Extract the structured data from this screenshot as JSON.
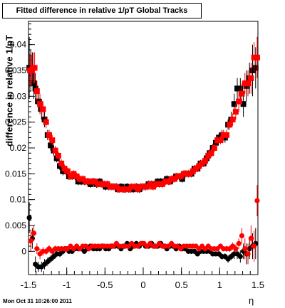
{
  "title": "Fitted difference in relative 1/pT  Global Tracks",
  "timestamp": "Mon Oct 31 10:26:00 2011",
  "chart_data": {
    "type": "scatter",
    "xlabel": "η",
    "ylabel": "difference in relative 1/pT",
    "xlim": [
      -1.5,
      1.5
    ],
    "ylim": [
      -0.0045,
      0.0445
    ],
    "x_ticks": [
      "-1.5",
      "-1",
      "-0.5",
      "0",
      "0.5",
      "1",
      "1.5"
    ],
    "y_ticks": [
      "0",
      "0.005",
      "0.01",
      "0.015",
      "0.02",
      "0.025",
      "0.03",
      "0.035",
      "0.04"
    ],
    "x_tick_values": [
      -1.5,
      -1,
      -0.5,
      0,
      0.5,
      1,
      1.5
    ],
    "y_tick_values": [
      0,
      0.005,
      0.01,
      0.015,
      0.02,
      0.025,
      0.03,
      0.035,
      0.04
    ],
    "grid": false,
    "series": [
      {
        "color": "#000000",
        "marker": "square",
        "x": [
          -1.49,
          -1.47,
          -1.45,
          -1.43,
          -1.41,
          -1.37,
          -1.33,
          -1.29,
          -1.25,
          -1.21,
          -1.17,
          -1.13,
          -1.09,
          -1.05,
          -1.01,
          -0.97,
          -0.93,
          -0.89,
          -0.85,
          -0.81,
          -0.77,
          -0.73,
          -0.69,
          -0.65,
          -0.61,
          -0.57,
          -0.53,
          -0.49,
          -0.45,
          -0.41,
          -0.37,
          -0.33,
          -0.29,
          -0.25,
          -0.21,
          -0.17,
          -0.13,
          -0.09,
          -0.05,
          -0.01,
          0.03,
          0.07,
          0.11,
          0.15,
          0.19,
          0.23,
          0.27,
          0.31,
          0.35,
          0.39,
          0.43,
          0.47,
          0.51,
          0.55,
          0.59,
          0.63,
          0.67,
          0.71,
          0.75,
          0.79,
          0.83,
          0.87,
          0.91,
          0.95,
          0.99,
          1.03,
          1.07,
          1.11,
          1.15,
          1.19,
          1.23,
          1.27,
          1.31,
          1.35,
          1.39,
          1.43,
          1.47
        ],
        "y": [
          0.0355,
          0.035,
          0.0355,
          0.0325,
          0.0315,
          0.029,
          0.0275,
          0.0255,
          0.0225,
          0.0205,
          0.0195,
          0.018,
          0.0165,
          0.0155,
          0.0155,
          0.0145,
          0.0145,
          0.0145,
          0.0135,
          0.0135,
          0.0135,
          0.0135,
          0.013,
          0.0135,
          0.013,
          0.0135,
          0.013,
          0.0125,
          0.0125,
          0.0125,
          0.0125,
          0.012,
          0.0125,
          0.012,
          0.0125,
          0.012,
          0.012,
          0.0125,
          0.012,
          0.0125,
          0.0125,
          0.013,
          0.013,
          0.013,
          0.0135,
          0.0135,
          0.0135,
          0.014,
          0.0135,
          0.014,
          0.0145,
          0.0145,
          0.014,
          0.015,
          0.015,
          0.015,
          0.016,
          0.016,
          0.017,
          0.017,
          0.018,
          0.019,
          0.02,
          0.021,
          0.022,
          0.0225,
          0.022,
          0.0245,
          0.0255,
          0.0285,
          0.0315,
          0.0315,
          0.0285,
          0.032,
          0.0335,
          0.035,
          0.0355
        ],
        "err": [
          0.006,
          0.004,
          0.003,
          0.003,
          0.003,
          0.002,
          0.002,
          0.0015,
          0.001,
          0.001,
          0.001,
          0.0008,
          0.0008,
          0.0008,
          0.0007,
          0.0007,
          0.0007,
          0.0007,
          0.0007,
          0.0007,
          0.0007,
          0.0007,
          0.0007,
          0.0007,
          0.0007,
          0.0007,
          0.0007,
          0.0007,
          0.0007,
          0.0007,
          0.0007,
          0.0007,
          0.0007,
          0.0007,
          0.0007,
          0.0007,
          0.0007,
          0.0007,
          0.0007,
          0.0007,
          0.0007,
          0.0007,
          0.0007,
          0.0007,
          0.0007,
          0.0007,
          0.0007,
          0.0007,
          0.0007,
          0.0007,
          0.0007,
          0.0007,
          0.0007,
          0.0007,
          0.0007,
          0.0007,
          0.0007,
          0.0007,
          0.0007,
          0.0007,
          0.0008,
          0.0008,
          0.0008,
          0.0008,
          0.0008,
          0.001,
          0.001,
          0.001,
          0.0015,
          0.002,
          0.002,
          0.002,
          0.0025,
          0.003,
          0.003,
          0.005,
          0.004
        ]
      },
      {
        "color": "#ff0000",
        "marker": "square",
        "x": [
          -1.48,
          -1.46,
          -1.44,
          -1.42,
          -1.39,
          -1.35,
          -1.31,
          -1.27,
          -1.23,
          -1.19,
          -1.15,
          -1.11,
          -1.07,
          -1.03,
          -0.99,
          -0.95,
          -0.91,
          -0.87,
          -0.83,
          -0.79,
          -0.75,
          -0.71,
          -0.67,
          -0.63,
          -0.59,
          -0.55,
          -0.51,
          -0.47,
          -0.43,
          -0.39,
          -0.35,
          -0.31,
          -0.27,
          -0.23,
          -0.19,
          -0.15,
          -0.11,
          -0.07,
          -0.03,
          0.01,
          0.05,
          0.09,
          0.13,
          0.17,
          0.21,
          0.25,
          0.29,
          0.33,
          0.37,
          0.41,
          0.45,
          0.49,
          0.53,
          0.57,
          0.61,
          0.65,
          0.69,
          0.73,
          0.77,
          0.81,
          0.85,
          0.89,
          0.93,
          0.97,
          1.01,
          1.05,
          1.09,
          1.13,
          1.17,
          1.21,
          1.25,
          1.29,
          1.33,
          1.37,
          1.41,
          1.45,
          1.49
        ],
        "y": [
          0.035,
          0.035,
          0.0355,
          0.0355,
          0.031,
          0.0285,
          0.0275,
          0.025,
          0.0225,
          0.0215,
          0.0195,
          0.0185,
          0.017,
          0.016,
          0.0155,
          0.0145,
          0.015,
          0.0145,
          0.014,
          0.014,
          0.0135,
          0.0135,
          0.0135,
          0.0135,
          0.013,
          0.013,
          0.013,
          0.013,
          0.0125,
          0.0125,
          0.0125,
          0.012,
          0.012,
          0.012,
          0.012,
          0.0125,
          0.0125,
          0.012,
          0.0125,
          0.0125,
          0.0125,
          0.013,
          0.0125,
          0.013,
          0.013,
          0.013,
          0.0135,
          0.0135,
          0.014,
          0.014,
          0.0145,
          0.0145,
          0.015,
          0.015,
          0.015,
          0.0155,
          0.016,
          0.0165,
          0.017,
          0.0175,
          0.0185,
          0.019,
          0.02,
          0.0215,
          0.0215,
          0.0225,
          0.0225,
          0.0245,
          0.0255,
          0.027,
          0.029,
          0.0305,
          0.0325,
          0.0325,
          0.0335,
          0.0375,
          0.0375
        ],
        "err": [
          0.003,
          0.003,
          0.003,
          0.003,
          0.002,
          0.002,
          0.0015,
          0.0012,
          0.001,
          0.001,
          0.0009,
          0.0008,
          0.0008,
          0.0008,
          0.0007,
          0.0007,
          0.0007,
          0.0007,
          0.0007,
          0.0007,
          0.0007,
          0.0007,
          0.0007,
          0.0007,
          0.0007,
          0.0007,
          0.0007,
          0.0007,
          0.0007,
          0.0007,
          0.0007,
          0.0007,
          0.0007,
          0.0007,
          0.0007,
          0.0007,
          0.0007,
          0.0007,
          0.0007,
          0.0007,
          0.0007,
          0.0007,
          0.0007,
          0.0007,
          0.0007,
          0.0007,
          0.0007,
          0.0007,
          0.0007,
          0.0007,
          0.0007,
          0.0007,
          0.0007,
          0.0007,
          0.0007,
          0.0007,
          0.0007,
          0.0007,
          0.0007,
          0.0007,
          0.0008,
          0.0008,
          0.0008,
          0.0008,
          0.0008,
          0.001,
          0.001,
          0.001,
          0.0012,
          0.0015,
          0.002,
          0.002,
          0.002,
          0.0025,
          0.003,
          0.003,
          0.004
        ]
      },
      {
        "color": "#000000",
        "marker": "circle",
        "x": [
          -1.49,
          -1.45,
          -1.41,
          -1.37,
          -1.33,
          -1.29,
          -1.25,
          -1.21,
          -1.17,
          -1.13,
          -1.09,
          -1.05,
          -1.01,
          -0.97,
          -0.93,
          -0.89,
          -0.85,
          -0.81,
          -0.77,
          -0.73,
          -0.69,
          -0.65,
          -0.61,
          -0.57,
          -0.53,
          -0.49,
          -0.45,
          -0.41,
          -0.37,
          -0.33,
          -0.29,
          -0.25,
          -0.21,
          -0.17,
          -0.13,
          -0.09,
          -0.05,
          -0.01,
          0.03,
          0.07,
          0.11,
          0.15,
          0.19,
          0.23,
          0.27,
          0.31,
          0.35,
          0.39,
          0.43,
          0.47,
          0.51,
          0.55,
          0.59,
          0.63,
          0.67,
          0.71,
          0.75,
          0.79,
          0.83,
          0.87,
          0.91,
          0.95,
          0.99,
          1.03,
          1.07,
          1.11,
          1.15,
          1.19,
          1.23,
          1.27,
          1.31,
          1.35,
          1.39,
          1.43,
          1.47
        ],
        "y": [
          0.0065,
          0.0025,
          -0.0025,
          -0.003,
          -0.003,
          -0.0025,
          -0.002,
          -0.0015,
          -0.001,
          -0.0005,
          -0.0005,
          0,
          0.0005,
          0,
          0,
          0.0005,
          0.0005,
          0.0005,
          0,
          0.0005,
          0.001,
          0.0005,
          0.0005,
          0.0005,
          0.001,
          0.0005,
          0.0005,
          0.001,
          0.001,
          0.001,
          0.0005,
          0.001,
          0.0015,
          0.0005,
          0.001,
          0.0015,
          0.001,
          0.0015,
          0.001,
          0.001,
          0.0015,
          0.001,
          0.001,
          0.0015,
          0.001,
          0.0005,
          0.001,
          0.001,
          0.0005,
          0.001,
          0.0005,
          0.0005,
          0,
          0,
          0,
          -0.0005,
          0,
          0,
          0,
          0,
          -0.0005,
          -0.0005,
          -0.0005,
          -0.001,
          -0.001,
          -0.0015,
          -0.001,
          -0.0005,
          -0.0005,
          -0.001,
          0,
          -0.0005,
          0.0005,
          0.001,
          0.0015
        ],
        "err": [
          0.003,
          0.002,
          0.0015,
          0.001,
          0.001,
          0.001,
          0.0008,
          0.0007,
          0.0007,
          0.0006,
          0.0006,
          0.0006,
          0.0005,
          0.0005,
          0.0005,
          0.0005,
          0.0005,
          0.0005,
          0.0005,
          0.0005,
          0.0005,
          0.0005,
          0.0005,
          0.0005,
          0.0005,
          0.0005,
          0.0005,
          0.0005,
          0.0005,
          0.0005,
          0.0005,
          0.0005,
          0.0005,
          0.0005,
          0.0005,
          0.0005,
          0.0005,
          0.0005,
          0.0005,
          0.0005,
          0.0005,
          0.0005,
          0.0005,
          0.0005,
          0.0005,
          0.0005,
          0.0005,
          0.0005,
          0.0005,
          0.0005,
          0.0005,
          0.0005,
          0.0005,
          0.0005,
          0.0005,
          0.0005,
          0.0005,
          0.0005,
          0.0005,
          0.0005,
          0.0005,
          0.0005,
          0.0006,
          0.0006,
          0.0006,
          0.0007,
          0.0007,
          0.001,
          0.001,
          0.0012,
          0.0015,
          0.002,
          0.002,
          0.0025,
          0.003
        ]
      },
      {
        "color": "#ff0000",
        "marker": "circle",
        "x": [
          -1.47,
          -1.43,
          -1.39,
          -1.35,
          -1.31,
          -1.27,
          -1.23,
          -1.19,
          -1.15,
          -1.11,
          -1.07,
          -1.03,
          -0.99,
          -0.95,
          -0.91,
          -0.87,
          -0.83,
          -0.79,
          -0.75,
          -0.71,
          -0.67,
          -0.63,
          -0.59,
          -0.55,
          -0.51,
          -0.47,
          -0.43,
          -0.39,
          -0.35,
          -0.31,
          -0.27,
          -0.23,
          -0.19,
          -0.15,
          -0.11,
          -0.07,
          -0.03,
          0.01,
          0.05,
          0.09,
          0.13,
          0.17,
          0.21,
          0.25,
          0.29,
          0.33,
          0.37,
          0.41,
          0.45,
          0.49,
          0.53,
          0.57,
          0.61,
          0.65,
          0.69,
          0.73,
          0.77,
          0.81,
          0.85,
          0.89,
          0.93,
          0.97,
          1.01,
          1.05,
          1.09,
          1.13,
          1.17,
          1.21,
          1.25,
          1.29,
          1.33,
          1.37,
          1.41,
          1.45,
          1.49
        ],
        "y": [
          0.002,
          0.0035,
          0.0005,
          -0.0005,
          0,
          0,
          0.0005,
          0,
          0.0005,
          0.0005,
          0.0005,
          0.0005,
          0.0005,
          0.001,
          0.0005,
          0.001,
          0.0005,
          0.001,
          0.001,
          0.0005,
          0.001,
          0.001,
          0.001,
          0.001,
          0.001,
          0.001,
          0.001,
          0.001,
          0.0015,
          0.001,
          0.001,
          0.001,
          0.001,
          0.0015,
          0.001,
          0.001,
          0.0015,
          0.0015,
          0.001,
          0.0015,
          0.001,
          0.001,
          0.0015,
          0.001,
          0.001,
          0.001,
          0.0015,
          0.001,
          0.001,
          0.0005,
          0.001,
          0.001,
          0.001,
          0.001,
          0.001,
          0.0005,
          0.001,
          0.0005,
          0.001,
          0.0005,
          0.0005,
          0.0005,
          0.001,
          0.0005,
          0.0005,
          0.0005,
          0.001,
          0.0005,
          0.0015,
          0.003,
          0.0005,
          -0.0005,
          0.0025,
          0.001,
          0.0098
        ],
        "err": [
          0.002,
          0.0015,
          0.001,
          0.001,
          0.0008,
          0.0007,
          0.0007,
          0.0006,
          0.0006,
          0.0005,
          0.0005,
          0.0005,
          0.0005,
          0.0005,
          0.0005,
          0.0005,
          0.0005,
          0.0005,
          0.0005,
          0.0005,
          0.0005,
          0.0005,
          0.0005,
          0.0005,
          0.0005,
          0.0005,
          0.0005,
          0.0005,
          0.0005,
          0.0005,
          0.0005,
          0.0005,
          0.0005,
          0.0005,
          0.0005,
          0.0005,
          0.0005,
          0.0005,
          0.0005,
          0.0005,
          0.0005,
          0.0005,
          0.0005,
          0.0005,
          0.0005,
          0.0005,
          0.0005,
          0.0005,
          0.0005,
          0.0005,
          0.0005,
          0.0005,
          0.0005,
          0.0005,
          0.0005,
          0.0005,
          0.0005,
          0.0005,
          0.0005,
          0.0005,
          0.0005,
          0.0005,
          0.0005,
          0.0005,
          0.0006,
          0.0006,
          0.0007,
          0.0008,
          0.001,
          0.0015,
          0.002,
          0.002,
          0.0025,
          0.003,
          0.003
        ]
      }
    ]
  }
}
